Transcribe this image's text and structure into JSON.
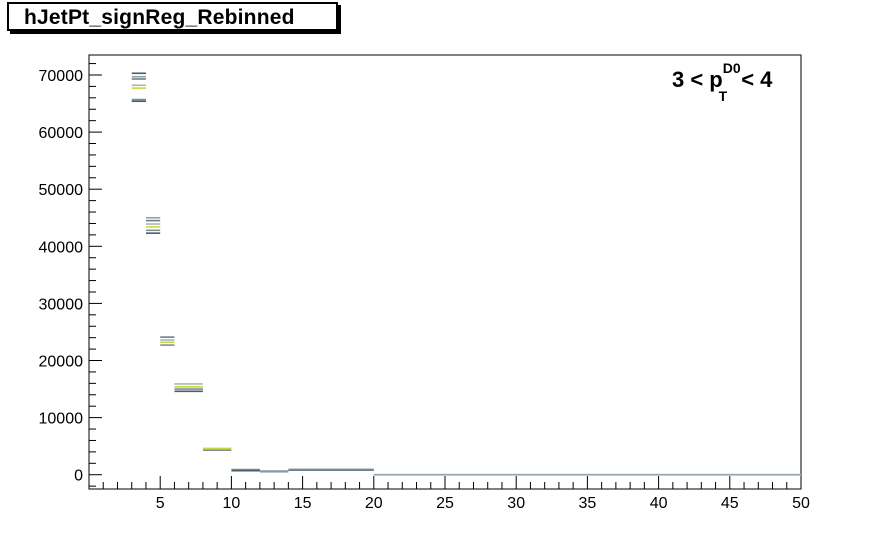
{
  "title": "hJetPt_signReg_Rebinned",
  "annotation": {
    "main_left": "3 < p",
    "sup": "D0",
    "sub": "T",
    "main_right": "< 4"
  },
  "chart_data": {
    "type": "bar",
    "title": "hJetPt_signReg_Rebinned",
    "xlabel": "",
    "ylabel": "",
    "xlim": [
      0,
      50
    ],
    "ylim": [
      -2500,
      73500
    ],
    "grid": false,
    "x_ticks": [
      5,
      10,
      15,
      20,
      25,
      30,
      35,
      40,
      45,
      50
    ],
    "y_ticks": [
      0,
      10000,
      20000,
      30000,
      40000,
      50000,
      60000,
      70000
    ],
    "x_tick_labels": [
      "5",
      "10",
      "15",
      "20",
      "25",
      "30",
      "35",
      "40",
      "45",
      "50"
    ],
    "y_tick_labels": [
      "0",
      "10000",
      "20000",
      "30000",
      "40000",
      "50000",
      "60000",
      "70000"
    ],
    "series_colors": [
      "#4b5d68",
      "#8ea2ad",
      "#6c7f8a",
      "#a8b6bd",
      "#c9d83a",
      "#7f8f97"
    ],
    "bins": [
      {
        "x_low": 3,
        "x_high": 4,
        "values": [
          70300,
          69700,
          69300,
          68200,
          67700,
          65700,
          65400
        ]
      },
      {
        "x_low": 4,
        "x_high": 5,
        "values": [
          45000,
          44500,
          43900,
          43400,
          42800,
          42300
        ]
      },
      {
        "x_low": 5,
        "x_high": 6,
        "values": [
          24100,
          23600,
          23200,
          22700
        ]
      },
      {
        "x_low": 6,
        "x_high": 8,
        "values": [
          15900,
          15400,
          15000,
          14600
        ]
      },
      {
        "x_low": 8,
        "x_high": 10,
        "values": [
          4600,
          4300
        ]
      },
      {
        "x_low": 10,
        "x_high": 12,
        "values": [
          900,
          700
        ]
      },
      {
        "x_low": 12,
        "x_high": 14,
        "values": [
          600,
          500
        ]
      },
      {
        "x_low": 14,
        "x_high": 20,
        "values": [
          950,
          800
        ]
      },
      {
        "x_low": 20,
        "x_high": 50,
        "values": [
          0,
          -50
        ]
      }
    ]
  }
}
